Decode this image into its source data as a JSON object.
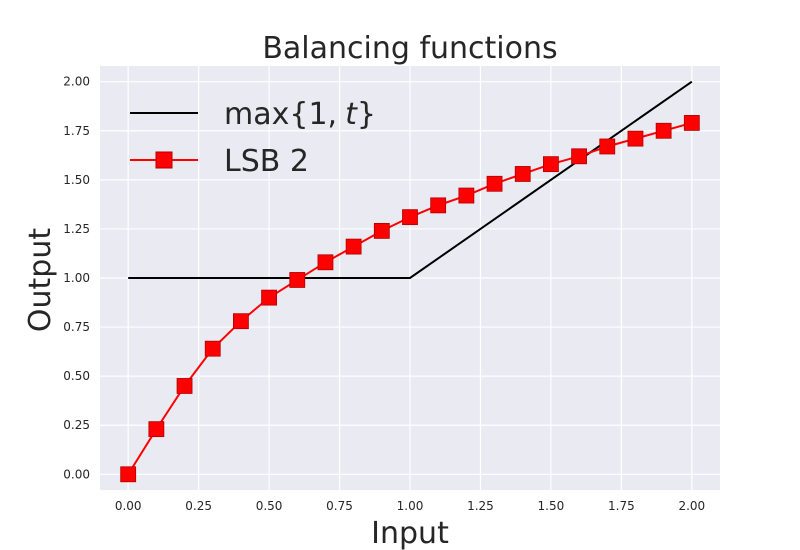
{
  "chart_data": {
    "type": "line",
    "title": "Balancing functions",
    "xlabel": "Input",
    "ylabel": "Output",
    "xlim": [
      -0.1,
      2.1
    ],
    "ylim": [
      -0.08,
      2.08
    ],
    "xticks": [
      0.0,
      0.25,
      0.5,
      0.75,
      1.0,
      1.25,
      1.5,
      1.75,
      2.0
    ],
    "xtick_labels": [
      "0.00",
      "0.25",
      "0.50",
      "0.75",
      "1.00",
      "1.25",
      "1.50",
      "1.75",
      "2.00"
    ],
    "yticks": [
      0.0,
      0.25,
      0.5,
      0.75,
      1.0,
      1.25,
      1.5,
      1.75,
      2.0
    ],
    "ytick_labels": [
      "0.00",
      "0.25",
      "0.50",
      "0.75",
      "1.00",
      "1.25",
      "1.50",
      "1.75",
      "2.00"
    ],
    "grid": true,
    "legend_position": "top-left",
    "series": [
      {
        "name": "max{1, t}",
        "color": "#000000",
        "marker": "none",
        "x": [
          0.0,
          1.0,
          2.0
        ],
        "y": [
          1.0,
          1.0,
          2.0
        ]
      },
      {
        "name": "LSB 2",
        "color": "#ff0000",
        "marker": "square",
        "x": [
          0.0,
          0.1,
          0.2,
          0.3,
          0.4,
          0.5,
          0.6,
          0.7,
          0.8,
          0.9,
          1.0,
          1.1,
          1.2,
          1.3,
          1.4,
          1.5,
          1.6,
          1.7,
          1.8,
          1.9,
          2.0
        ],
        "y": [
          0.0,
          0.23,
          0.45,
          0.64,
          0.78,
          0.9,
          0.99,
          1.08,
          1.16,
          1.24,
          1.31,
          1.37,
          1.42,
          1.48,
          1.53,
          1.58,
          1.62,
          1.67,
          1.71,
          1.75,
          1.79
        ]
      }
    ]
  },
  "colors": {
    "plot_background": "#eaeaf2",
    "grid": "#ffffff",
    "text": "#262626"
  }
}
